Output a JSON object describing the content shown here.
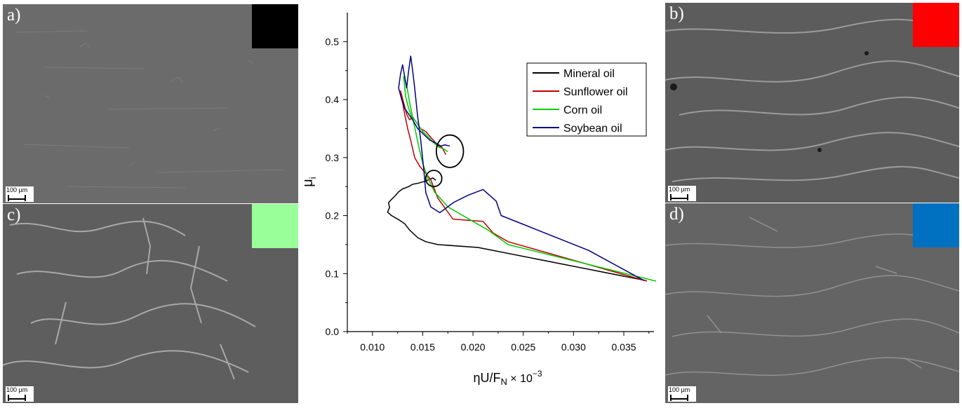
{
  "panels": [
    {
      "label": "a)",
      "swatch_color": "#000000",
      "scale_text": "100 µm"
    },
    {
      "label": "b)",
      "swatch_color": "#ff0000",
      "scale_text": "100 µm"
    },
    {
      "label": "c)",
      "swatch_color": "#99ff99",
      "scale_text": "100 µm"
    },
    {
      "label": "d)",
      "swatch_color": "#0070c0",
      "scale_text": "100 µm"
    }
  ],
  "chart_data": {
    "type": "line",
    "title": "",
    "xlabel": "ηU/Fₙ × 10⁻³",
    "xlabel_main": "ηU/F",
    "xlabel_sub": "N",
    "xlabel_times": " × 10",
    "xlabel_exp": "−3",
    "ylabel": "μ",
    "ylabel_sub": "i",
    "xlim": [
      0.0075,
      0.038
    ],
    "ylim": [
      0.0,
      0.55
    ],
    "xticks": [
      0.01,
      0.015,
      0.02,
      0.025,
      0.03,
      0.035
    ],
    "xtick_labels": [
      "0.010",
      "0.015",
      "0.020",
      "0.025",
      "0.030",
      "0.035"
    ],
    "yticks": [
      0.0,
      0.1,
      0.2,
      0.3,
      0.4,
      0.5
    ],
    "ytick_labels": [
      "0.0",
      "0.1",
      "0.2",
      "0.3",
      "0.4",
      "0.5"
    ],
    "legend_position": "top-right",
    "series": [
      {
        "name": "Mineral oil",
        "color": "#000000",
        "x": [
          0.0372,
          0.0205,
          0.0165,
          0.0153,
          0.0145,
          0.0137,
          0.0132,
          0.0126,
          0.0119,
          0.0115,
          0.0117,
          0.0116,
          0.0119,
          0.0123,
          0.0126,
          0.013,
          0.0136,
          0.014,
          0.0146,
          0.0152,
          0.0156,
          0.016,
          0.0163
        ],
        "y": [
          0.088,
          0.145,
          0.15,
          0.155,
          0.162,
          0.175,
          0.186,
          0.193,
          0.2,
          0.206,
          0.214,
          0.222,
          0.228,
          0.235,
          0.241,
          0.246,
          0.25,
          0.254,
          0.256,
          0.259,
          0.262,
          0.265,
          0.261
        ]
      },
      {
        "name": "Sunflower oil",
        "color": "#c00000",
        "x": [
          0.0373,
          0.0235,
          0.022,
          0.021,
          0.0195,
          0.018,
          0.0165,
          0.0158,
          0.0152,
          0.0147,
          0.0142,
          0.0138,
          0.0135,
          0.0132,
          0.013,
          0.0128,
          0.0131,
          0.0134,
          0.0137,
          0.014,
          0.0144,
          0.0148,
          0.0153,
          0.0158,
          0.0163,
          0.0166,
          0.0169,
          0.0171,
          0.0173
        ],
        "y": [
          0.087,
          0.155,
          0.17,
          0.19,
          0.192,
          0.194,
          0.23,
          0.262,
          0.275,
          0.285,
          0.3,
          0.33,
          0.35,
          0.375,
          0.395,
          0.415,
          0.395,
          0.375,
          0.365,
          0.37,
          0.36,
          0.35,
          0.345,
          0.335,
          0.325,
          0.32,
          0.318,
          0.312,
          0.305
        ]
      },
      {
        "name": "Corn oil",
        "color": "#00cc00",
        "x": [
          0.0382,
          0.0235,
          0.0215,
          0.0195,
          0.0175,
          0.0162,
          0.0155,
          0.015,
          0.0146,
          0.0141,
          0.0137,
          0.0134,
          0.0131,
          0.0133,
          0.0136,
          0.0139,
          0.0142,
          0.0146,
          0.015,
          0.0156,
          0.0161,
          0.0166,
          0.0171,
          0.0175
        ],
        "y": [
          0.087,
          0.15,
          0.175,
          0.195,
          0.215,
          0.24,
          0.265,
          0.29,
          0.32,
          0.36,
          0.395,
          0.425,
          0.44,
          0.405,
          0.385,
          0.37,
          0.365,
          0.355,
          0.345,
          0.335,
          0.325,
          0.318,
          0.315,
          0.31
        ]
      },
      {
        "name": "Soybean oil",
        "color": "#000080",
        "x": [
          0.037,
          0.0315,
          0.025,
          0.0228,
          0.0223,
          0.021,
          0.0195,
          0.0181,
          0.0167,
          0.0158,
          0.0153,
          0.0151,
          0.0148,
          0.0145,
          0.0142,
          0.014,
          0.0138,
          0.0136,
          0.0134,
          0.0132,
          0.013,
          0.0128,
          0.0126,
          0.0129,
          0.0132,
          0.0136,
          0.014,
          0.0145,
          0.0151,
          0.0157,
          0.0163,
          0.0168,
          0.0172,
          0.0177
        ],
        "y": [
          0.088,
          0.14,
          0.185,
          0.2,
          0.225,
          0.245,
          0.235,
          0.223,
          0.205,
          0.215,
          0.24,
          0.28,
          0.33,
          0.37,
          0.42,
          0.45,
          0.475,
          0.45,
          0.42,
          0.44,
          0.46,
          0.445,
          0.42,
          0.4,
          0.385,
          0.375,
          0.365,
          0.35,
          0.34,
          0.33,
          0.325,
          0.32,
          0.322,
          0.32
        ]
      }
    ],
    "annotations": [
      {
        "type": "circle",
        "cx": 0.0161,
        "cy": 0.264,
        "rx": 0.0008,
        "ry": 0.014
      },
      {
        "type": "circle",
        "cx": 0.0177,
        "cy": 0.311,
        "rx": 0.00135,
        "ry": 0.028
      }
    ]
  }
}
